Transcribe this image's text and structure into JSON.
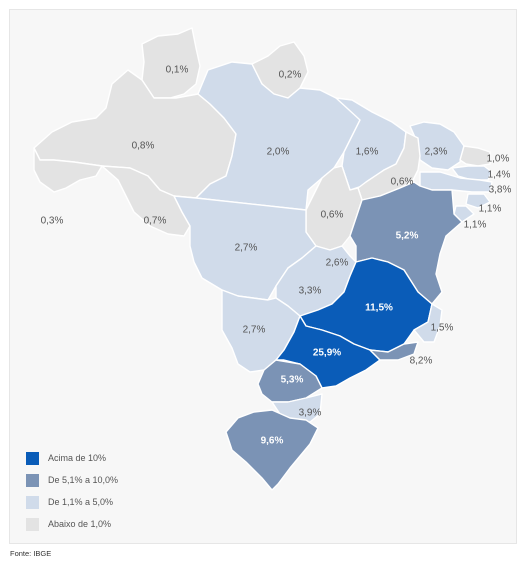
{
  "legend": [
    {
      "label": "Acima de 10%",
      "color": "#0a5cb8"
    },
    {
      "label": "De 5,1% a 10,0%",
      "color": "#7b93b5"
    },
    {
      "label": "De 1,1% a 5,0%",
      "color": "#d0dbea"
    },
    {
      "label": "Abaixo de 1,0%",
      "color": "#e3e3e3"
    }
  ],
  "states": [
    {
      "id": "RR",
      "value_label": "0,1%",
      "class": 3
    },
    {
      "id": "AP",
      "value_label": "0,2%",
      "class": 3
    },
    {
      "id": "AM",
      "value_label": "0,8%",
      "class": 3
    },
    {
      "id": "PA",
      "value_label": "2,0%",
      "class": 2
    },
    {
      "id": "MA",
      "value_label": "1,6%",
      "class": 2
    },
    {
      "id": "CE",
      "value_label": "2,3%",
      "class": 2
    },
    {
      "id": "RN",
      "value_label": "1,0%",
      "class": 3
    },
    {
      "id": "PB",
      "value_label": "1,4%",
      "class": 2
    },
    {
      "id": "PE",
      "value_label": "3,8%",
      "class": 2
    },
    {
      "id": "AL",
      "value_label": "1,1%",
      "class": 2
    },
    {
      "id": "SE",
      "value_label": "1,1%",
      "class": 2
    },
    {
      "id": "PI",
      "value_label": "0,6%",
      "class": 3
    },
    {
      "id": "AC",
      "value_label": "0,3%",
      "class": 3
    },
    {
      "id": "RO",
      "value_label": "0,7%",
      "class": 3
    },
    {
      "id": "TO",
      "value_label": "0,6%",
      "class": 3
    },
    {
      "id": "BA",
      "value_label": "5,2%",
      "class": 1
    },
    {
      "id": "MT",
      "value_label": "2,7%",
      "class": 2
    },
    {
      "id": "DF",
      "value_label": "2,6%",
      "class": 2
    },
    {
      "id": "GO",
      "value_label": "3,3%",
      "class": 2
    },
    {
      "id": "MG",
      "value_label": "11,5%",
      "class": 0
    },
    {
      "id": "MS",
      "value_label": "2,7%",
      "class": 2
    },
    {
      "id": "ES",
      "value_label": "1,5%",
      "class": 2
    },
    {
      "id": "SP",
      "value_label": "25,9%",
      "class": 0
    },
    {
      "id": "RJ",
      "value_label": "8,2%",
      "class": 1
    },
    {
      "id": "PR",
      "value_label": "5,3%",
      "class": 1
    },
    {
      "id": "SC",
      "value_label": "3,9%",
      "class": 2
    },
    {
      "id": "RS",
      "value_label": "9,6%",
      "class": 1
    }
  ],
  "source": "Fonte: IBGE"
}
